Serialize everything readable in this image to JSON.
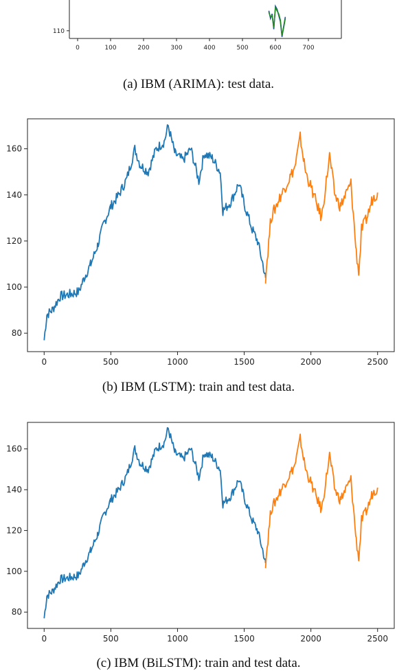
{
  "captions": {
    "a": "(a)  IBM (ARIMA): test data.",
    "b": "(b)  IBM (LSTM): train and test data.",
    "c": "(c)  IBM (BiLSTM): train and test data."
  },
  "colors": {
    "train": "#1f77b4",
    "test": "#ff7f0e",
    "arima_actual": "#1f4fa0",
    "arima_pred": "#228b22"
  },
  "chart_data": [
    {
      "id": "a",
      "type": "line",
      "title": "",
      "xlabel": "",
      "ylabel": "",
      "xlim": [
        -25,
        800
      ],
      "xticks": [
        0,
        100,
        200,
        300,
        400,
        500,
        600,
        700
      ],
      "yticks_visible": [
        110
      ],
      "series": [
        {
          "x": [
            580,
            585,
            590,
            595,
            600,
            605,
            610,
            615,
            620,
            625,
            630
          ],
          "y": [
            123,
            118,
            121,
            111,
            126,
            124,
            120,
            116,
            106,
            113,
            119
          ]
        },
        {
          "x": [
            580,
            585,
            590,
            595,
            600,
            605,
            610,
            615,
            620,
            625,
            630
          ],
          "y": [
            122,
            119,
            120,
            112,
            125,
            123,
            121,
            117,
            107,
            112,
            118
          ]
        }
      ]
    },
    {
      "id": "b",
      "type": "line",
      "title": "",
      "xlabel": "",
      "ylabel": "",
      "xlim": [
        -125,
        2625
      ],
      "ylim": [
        72,
        173
      ],
      "xticks": [
        0,
        500,
        1000,
        1500,
        2000,
        2500
      ],
      "yticks": [
        80,
        100,
        120,
        140,
        160
      ],
      "series": [
        {
          "x": [
            0,
            20,
            60,
            120,
            200,
            260,
            300,
            350,
            400,
            450,
            500,
            560,
            620,
            680,
            720,
            780,
            840,
            900,
            930,
            980,
            1040,
            1100,
            1160,
            1200,
            1260,
            1320,
            1340,
            1400,
            1460,
            1500,
            1560,
            1600,
            1640,
            1660
          ],
          "y": [
            77,
            88,
            90,
            96,
            97,
            98,
            104,
            110,
            118,
            128,
            135,
            140,
            147,
            160,
            153,
            150,
            160,
            163,
            170,
            158,
            155,
            160,
            146,
            158,
            156,
            150,
            133,
            137,
            145,
            136,
            125,
            120,
            110,
            104
          ]
        },
        {
          "x": [
            1660,
            1700,
            1760,
            1820,
            1880,
            1920,
            1960,
            2020,
            2080,
            2140,
            2180,
            2220,
            2260,
            2300,
            2340,
            2360,
            2380,
            2420,
            2460,
            2500
          ],
          "y": [
            104,
            130,
            138,
            145,
            152,
            165,
            150,
            140,
            130,
            157,
            140,
            135,
            140,
            145,
            115,
            106,
            125,
            130,
            138,
            141
          ]
        }
      ]
    },
    {
      "id": "c",
      "type": "line",
      "title": "",
      "xlabel": "",
      "ylabel": "",
      "xlim": [
        -125,
        2625
      ],
      "ylim": [
        72,
        173
      ],
      "xticks": [
        0,
        500,
        1000,
        1500,
        2000,
        2500
      ],
      "yticks": [
        80,
        100,
        120,
        140,
        160
      ],
      "series": [
        {
          "x": [
            0,
            20,
            60,
            120,
            200,
            260,
            300,
            350,
            400,
            450,
            500,
            560,
            620,
            680,
            720,
            780,
            840,
            900,
            930,
            980,
            1040,
            1100,
            1160,
            1200,
            1260,
            1320,
            1340,
            1400,
            1460,
            1500,
            1560,
            1600,
            1640,
            1660
          ],
          "y": [
            77,
            88,
            90,
            96,
            97,
            98,
            104,
            110,
            118,
            128,
            135,
            140,
            147,
            160,
            153,
            150,
            160,
            163,
            170,
            158,
            155,
            160,
            146,
            158,
            156,
            150,
            133,
            137,
            145,
            136,
            125,
            120,
            110,
            104
          ]
        },
        {
          "x": [
            1660,
            1700,
            1760,
            1820,
            1880,
            1920,
            1960,
            2020,
            2080,
            2140,
            2180,
            2220,
            2260,
            2300,
            2340,
            2360,
            2380,
            2420,
            2460,
            2500
          ],
          "y": [
            104,
            130,
            138,
            145,
            152,
            165,
            150,
            140,
            130,
            157,
            140,
            135,
            140,
            145,
            115,
            106,
            125,
            130,
            138,
            141
          ]
        }
      ]
    }
  ]
}
